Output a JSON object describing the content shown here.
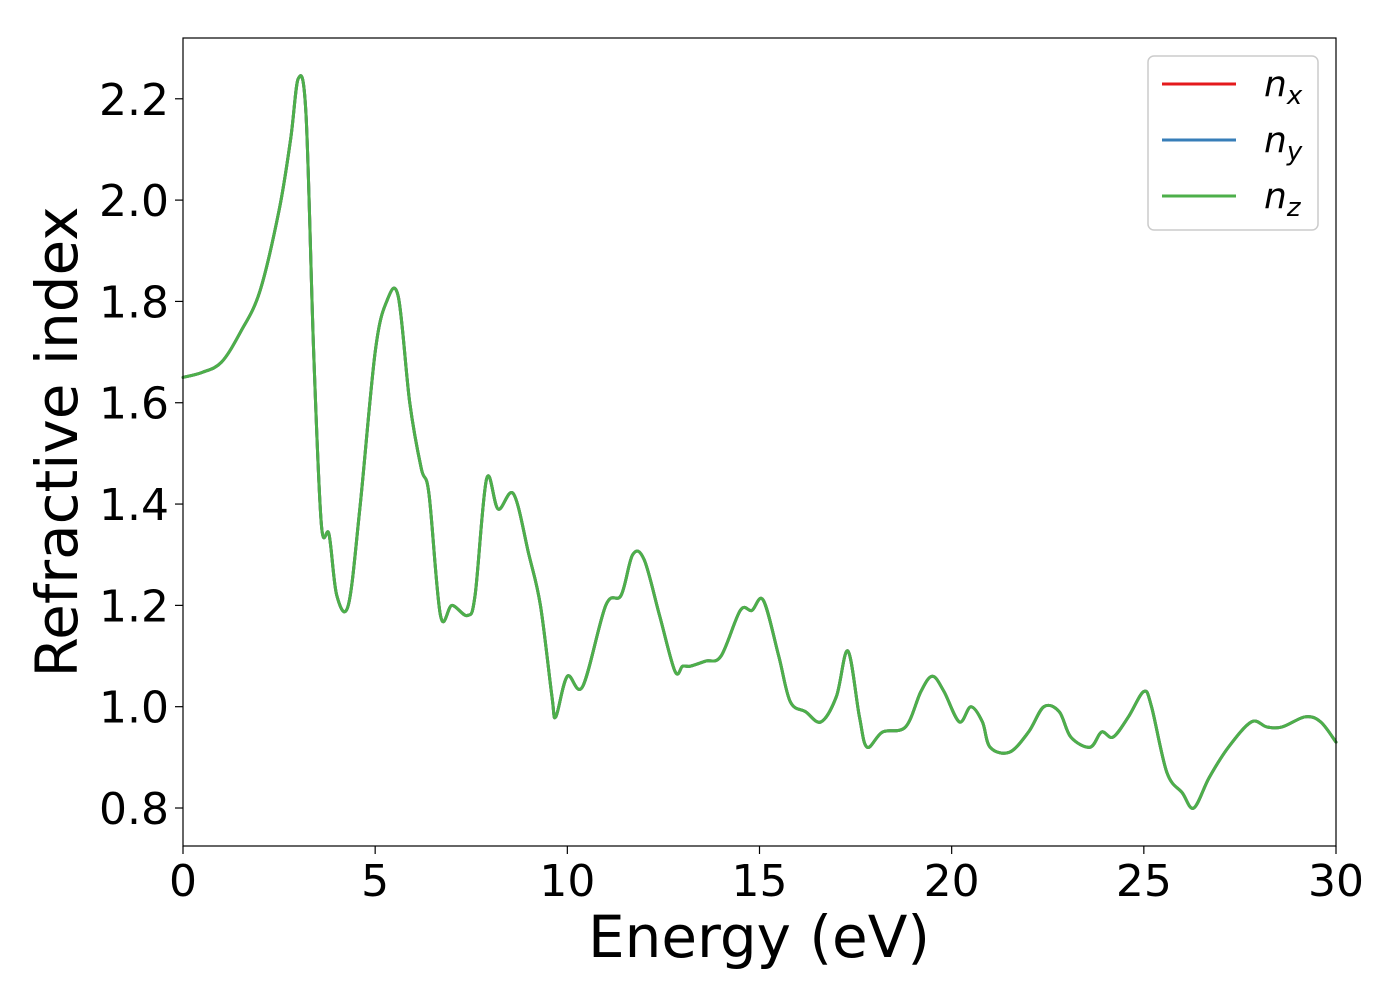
{
  "chart_data": {
    "type": "line",
    "title": "",
    "xlabel": "Energy (eV)",
    "ylabel": "Refractive index",
    "xlim": [
      0,
      30
    ],
    "ylim": [
      0.725,
      2.32
    ],
    "xticks": [
      0,
      5,
      10,
      15,
      20,
      25,
      30
    ],
    "xtick_labels": [
      "0",
      "5",
      "10",
      "15",
      "20",
      "25",
      "30"
    ],
    "yticks": [
      0.8,
      1.0,
      1.2,
      1.4,
      1.6,
      1.8,
      2.0,
      2.2
    ],
    "ytick_labels": [
      "0.8",
      "1.0",
      "1.2",
      "1.4",
      "1.6",
      "1.8",
      "2.0",
      "2.2"
    ],
    "grid": false,
    "legend_position": "top-right",
    "x": [
      0,
      0.5,
      1,
      1.5,
      2,
      2.5,
      2.8,
      3,
      3.2,
      3.4,
      3.6,
      3.8,
      4,
      4.3,
      4.6,
      5,
      5.3,
      5.6,
      5.9,
      6.2,
      6.4,
      6.7,
      7,
      7.4,
      7.6,
      7.9,
      8.2,
      8.6,
      9,
      9.3,
      9.6,
      9.7,
      10,
      10.4,
      11,
      11.4,
      11.7,
      12,
      12.4,
      12.8,
      13,
      13.2,
      13.6,
      14,
      14.5,
      14.8,
      15.1,
      15.5,
      15.8,
      16.2,
      16.6,
      17,
      17.3,
      17.6,
      17.8,
      18.2,
      18.8,
      19.2,
      19.5,
      19.8,
      20.2,
      20.5,
      20.8,
      21,
      21.5,
      22,
      22.4,
      22.8,
      23.1,
      23.6,
      23.9,
      24.2,
      24.6,
      25,
      25.2,
      25.6,
      26,
      26.3,
      26.7,
      27.2,
      27.8,
      28.2,
      28.6,
      29.2,
      29.6,
      30
    ],
    "series": [
      {
        "name": "n_x",
        "color": "#e41a1c",
        "y": [
          1.65,
          1.66,
          1.68,
          1.74,
          1.82,
          1.98,
          2.12,
          2.24,
          2.17,
          1.7,
          1.36,
          1.34,
          1.22,
          1.2,
          1.39,
          1.7,
          1.8,
          1.81,
          1.6,
          1.47,
          1.42,
          1.18,
          1.2,
          1.18,
          1.22,
          1.45,
          1.39,
          1.42,
          1.3,
          1.2,
          1.02,
          0.98,
          1.06,
          1.04,
          1.2,
          1.22,
          1.3,
          1.29,
          1.18,
          1.07,
          1.08,
          1.08,
          1.09,
          1.1,
          1.19,
          1.19,
          1.21,
          1.1,
          1.01,
          0.99,
          0.97,
          1.02,
          1.11,
          0.98,
          0.92,
          0.95,
          0.96,
          1.03,
          1.06,
          1.03,
          0.97,
          1.0,
          0.97,
          0.92,
          0.91,
          0.95,
          1.0,
          0.99,
          0.94,
          0.92,
          0.95,
          0.94,
          0.98,
          1.03,
          1.0,
          0.87,
          0.83,
          0.8,
          0.86,
          0.92,
          0.97,
          0.96,
          0.96,
          0.98,
          0.97,
          0.93
        ]
      },
      {
        "name": "n_y",
        "color": "#377eb8",
        "y": [
          1.65,
          1.66,
          1.68,
          1.74,
          1.82,
          1.98,
          2.12,
          2.24,
          2.17,
          1.7,
          1.36,
          1.34,
          1.22,
          1.2,
          1.39,
          1.7,
          1.8,
          1.81,
          1.6,
          1.47,
          1.42,
          1.18,
          1.2,
          1.18,
          1.22,
          1.45,
          1.39,
          1.42,
          1.3,
          1.2,
          1.02,
          0.98,
          1.06,
          1.04,
          1.2,
          1.22,
          1.3,
          1.29,
          1.18,
          1.07,
          1.08,
          1.08,
          1.09,
          1.1,
          1.19,
          1.19,
          1.21,
          1.1,
          1.01,
          0.99,
          0.97,
          1.02,
          1.11,
          0.98,
          0.92,
          0.95,
          0.96,
          1.03,
          1.06,
          1.03,
          0.97,
          1.0,
          0.97,
          0.92,
          0.91,
          0.95,
          1.0,
          0.99,
          0.94,
          0.92,
          0.95,
          0.94,
          0.98,
          1.03,
          1.0,
          0.87,
          0.83,
          0.8,
          0.86,
          0.92,
          0.97,
          0.96,
          0.96,
          0.98,
          0.97,
          0.93
        ]
      },
      {
        "name": "n_z",
        "color": "#4daf4a",
        "y": [
          1.65,
          1.66,
          1.68,
          1.74,
          1.82,
          1.98,
          2.12,
          2.24,
          2.17,
          1.7,
          1.36,
          1.34,
          1.22,
          1.2,
          1.39,
          1.7,
          1.8,
          1.81,
          1.6,
          1.47,
          1.42,
          1.18,
          1.2,
          1.18,
          1.22,
          1.45,
          1.39,
          1.42,
          1.3,
          1.2,
          1.02,
          0.98,
          1.06,
          1.04,
          1.2,
          1.22,
          1.3,
          1.29,
          1.18,
          1.07,
          1.08,
          1.08,
          1.09,
          1.1,
          1.19,
          1.19,
          1.21,
          1.1,
          1.01,
          0.99,
          0.97,
          1.02,
          1.11,
          0.98,
          0.92,
          0.95,
          0.96,
          1.03,
          1.06,
          1.03,
          0.97,
          1.0,
          0.97,
          0.92,
          0.91,
          0.95,
          1.0,
          0.99,
          0.94,
          0.92,
          0.95,
          0.94,
          0.98,
          1.03,
          1.0,
          0.87,
          0.83,
          0.8,
          0.86,
          0.92,
          0.97,
          0.96,
          0.96,
          0.98,
          0.97,
          0.93
        ]
      }
    ],
    "legend": [
      {
        "base": "n",
        "sub": "x",
        "color": "#e41a1c"
      },
      {
        "base": "n",
        "sub": "y",
        "color": "#377eb8"
      },
      {
        "base": "n",
        "sub": "z",
        "color": "#4daf4a"
      }
    ]
  }
}
